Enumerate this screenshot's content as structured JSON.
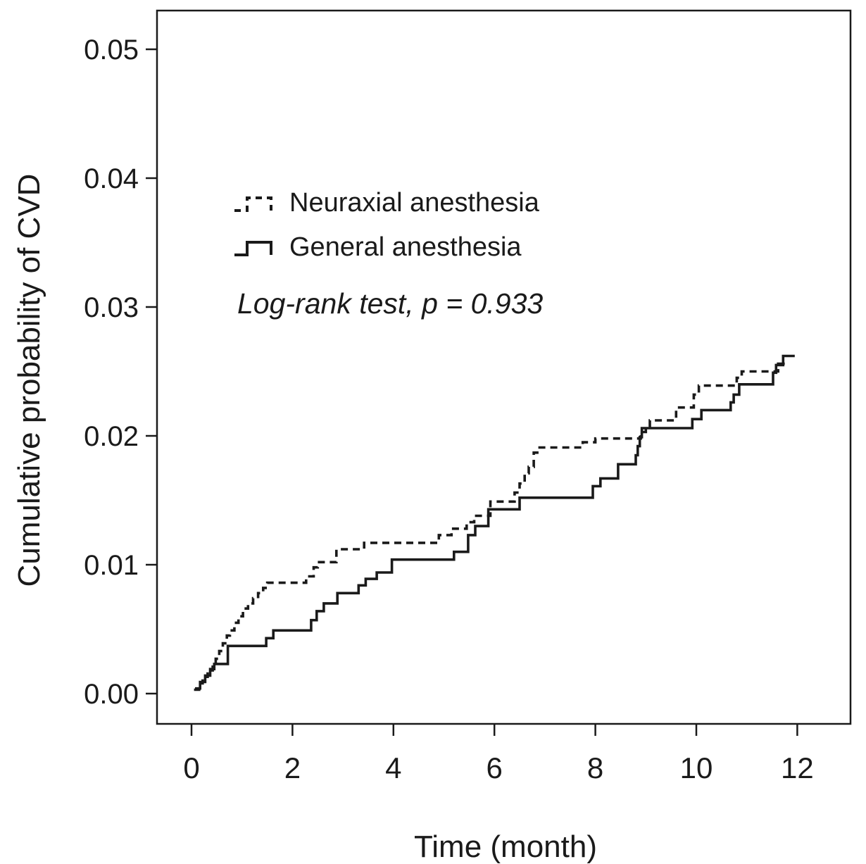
{
  "figure": {
    "background_color": "#ffffff",
    "line_color": "#1a1a1a"
  },
  "chart_data": {
    "type": "line",
    "subtype": "kaplan-meier-step",
    "title": "",
    "xlabel": "Time (month)",
    "ylabel": "Cumulative probability of CVD",
    "xlim": [
      0,
      12
    ],
    "ylim": [
      0.0,
      0.05
    ],
    "x_ticks": [
      0,
      2,
      4,
      6,
      8,
      10,
      12
    ],
    "y_ticks": [
      "0.00",
      "0.01",
      "0.02",
      "0.03",
      "0.04",
      "0.05"
    ],
    "grid": false,
    "legend_position": "upper-left-inside",
    "annotation": "Log-rank test, p = 0.933",
    "series": [
      {
        "name": "General anesthesia",
        "style": "solid",
        "color": "#1a1a1a",
        "end_x": 11.95,
        "points": [
          [
            0.07,
            0.0004
          ],
          [
            0.17,
            0.0009
          ],
          [
            0.27,
            0.0014
          ],
          [
            0.37,
            0.0019
          ],
          [
            0.45,
            0.0023
          ],
          [
            0.72,
            0.0037
          ],
          [
            1.48,
            0.0043
          ],
          [
            1.62,
            0.0049
          ],
          [
            2.37,
            0.0057
          ],
          [
            2.48,
            0.0064
          ],
          [
            2.62,
            0.007
          ],
          [
            2.89,
            0.0078
          ],
          [
            3.31,
            0.0084
          ],
          [
            3.45,
            0.0089
          ],
          [
            3.67,
            0.0094
          ],
          [
            3.97,
            0.0104
          ],
          [
            5.2,
            0.011
          ],
          [
            5.48,
            0.0123
          ],
          [
            5.62,
            0.013
          ],
          [
            5.88,
            0.0143
          ],
          [
            6.5,
            0.0152
          ],
          [
            7.95,
            0.0161
          ],
          [
            8.1,
            0.0167
          ],
          [
            8.45,
            0.0178
          ],
          [
            8.8,
            0.0185
          ],
          [
            8.84,
            0.0192
          ],
          [
            8.88,
            0.0199
          ],
          [
            8.92,
            0.0206
          ],
          [
            9.92,
            0.0213
          ],
          [
            10.1,
            0.022
          ],
          [
            10.68,
            0.0226
          ],
          [
            10.74,
            0.0232
          ],
          [
            10.85,
            0.024
          ],
          [
            11.52,
            0.0249
          ],
          [
            11.58,
            0.0255
          ],
          [
            11.72,
            0.0262
          ]
        ]
      },
      {
        "name": "Neuraxial anesthesia",
        "style": "dashed",
        "color": "#1a1a1a",
        "end_x": 11.8,
        "points": [
          [
            0.05,
            0.0003
          ],
          [
            0.15,
            0.0008
          ],
          [
            0.22,
            0.0013
          ],
          [
            0.32,
            0.0018
          ],
          [
            0.42,
            0.0023
          ],
          [
            0.48,
            0.0027
          ],
          [
            0.55,
            0.0033
          ],
          [
            0.62,
            0.0039
          ],
          [
            0.7,
            0.0045
          ],
          [
            0.76,
            0.0049
          ],
          [
            0.85,
            0.0055
          ],
          [
            0.93,
            0.006
          ],
          [
            1.02,
            0.0066
          ],
          [
            1.12,
            0.007
          ],
          [
            1.22,
            0.0074
          ],
          [
            1.32,
            0.0078
          ],
          [
            1.42,
            0.0082
          ],
          [
            1.5,
            0.0086
          ],
          [
            2.27,
            0.0091
          ],
          [
            2.42,
            0.0098
          ],
          [
            2.5,
            0.0102
          ],
          [
            2.87,
            0.0112
          ],
          [
            3.42,
            0.0117
          ],
          [
            4.9,
            0.0123
          ],
          [
            5.15,
            0.0128
          ],
          [
            5.45,
            0.0133
          ],
          [
            5.6,
            0.0138
          ],
          [
            5.92,
            0.0149
          ],
          [
            6.4,
            0.0156
          ],
          [
            6.5,
            0.0163
          ],
          [
            6.6,
            0.0171
          ],
          [
            6.68,
            0.0176
          ],
          [
            6.78,
            0.0187
          ],
          [
            6.85,
            0.0191
          ],
          [
            7.75,
            0.0195
          ],
          [
            8.0,
            0.0198
          ],
          [
            8.9,
            0.0203
          ],
          [
            9.0,
            0.0207
          ],
          [
            9.08,
            0.0212
          ],
          [
            9.6,
            0.0222
          ],
          [
            9.95,
            0.0232
          ],
          [
            10.05,
            0.0239
          ],
          [
            10.8,
            0.0245
          ],
          [
            10.9,
            0.025
          ],
          [
            11.62,
            0.0256
          ]
        ]
      }
    ]
  }
}
